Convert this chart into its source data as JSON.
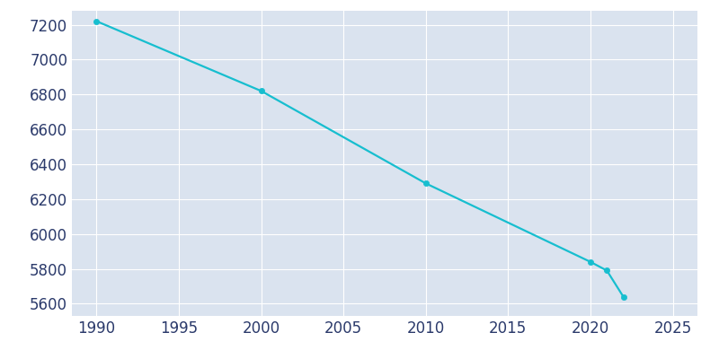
{
  "years": [
    1990,
    2000,
    2010,
    2020,
    2021,
    2022
  ],
  "population": [
    7220,
    6820,
    6290,
    5840,
    5790,
    5640
  ],
  "line_color": "#17BECF",
  "marker_color": "#17BECF",
  "fig_facecolor": "#ffffff",
  "plot_bg_color": "#DAE3EF",
  "grid_color": "#ffffff",
  "tick_label_color": "#2B3A6B",
  "xlim": [
    1988.5,
    2026.5
  ],
  "ylim": [
    5530,
    7280
  ],
  "xticks": [
    1990,
    1995,
    2000,
    2005,
    2010,
    2015,
    2020,
    2025
  ],
  "yticks": [
    5600,
    5800,
    6000,
    6200,
    6400,
    6600,
    6800,
    7000,
    7200
  ],
  "linewidth": 1.6,
  "markersize": 4.5,
  "tick_labelsize": 12
}
